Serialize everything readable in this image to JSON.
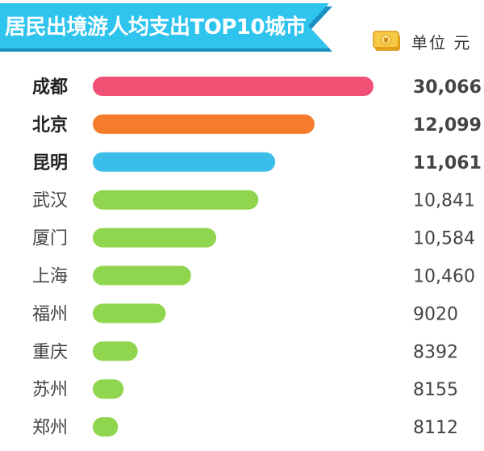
{
  "colors": {
    "banner": "#2fc4ee",
    "banner_shadow": "#1a8fc0",
    "rank1": "#f15075",
    "rank2": "#f57c2c",
    "rank3": "#3bbde9",
    "others": "#8fd54e"
  },
  "icons": {
    "unit": "money-bill-icon"
  },
  "chart_data": {
    "type": "bar",
    "orientation": "horizontal",
    "title": "居民出境游人均支出TOP10城市",
    "unit_label": "单位 元",
    "categories": [
      "成都",
      "北京",
      "昆明",
      "武汉",
      "厦门",
      "上海",
      "福州",
      "重庆",
      "苏州",
      "郑州"
    ],
    "value_labels": [
      "30,066",
      "12,099",
      "11,061",
      "10,841",
      "10,584",
      "10,460",
      "9020",
      "8392",
      "8155",
      "8112"
    ],
    "values": [
      30066,
      12099,
      11061,
      10841,
      10584,
      10460,
      9020,
      8392,
      8155,
      8112
    ],
    "bar_length_share": [
      1.0,
      0.79,
      0.65,
      0.59,
      0.44,
      0.35,
      0.26,
      0.16,
      0.11,
      0.09
    ],
    "legend": "none",
    "grid": false
  }
}
